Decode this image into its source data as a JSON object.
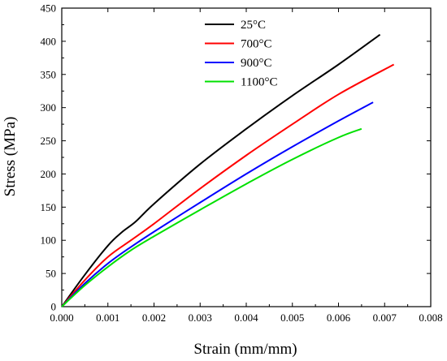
{
  "chart_data": {
    "type": "line",
    "title": "",
    "xlabel": "Strain (mm/mm)",
    "ylabel": "Stress (MPa)",
    "xlim": [
      0.0,
      0.008
    ],
    "ylim": [
      0,
      450
    ],
    "x_ticks": [
      "0.000",
      "0.001",
      "0.002",
      "0.003",
      "0.004",
      "0.005",
      "0.006",
      "0.007",
      "0.008"
    ],
    "y_ticks": [
      "0",
      "50",
      "100",
      "150",
      "200",
      "250",
      "300",
      "350",
      "400",
      "450"
    ],
    "grid": false,
    "legend_position": "top-left",
    "series": [
      {
        "name": "25°C",
        "color": "#000000",
        "points": [
          [
            0.0,
            0
          ],
          [
            0.0005,
            48
          ],
          [
            0.001,
            92
          ],
          [
            0.0013,
            112
          ],
          [
            0.0016,
            128
          ],
          [
            0.002,
            155
          ],
          [
            0.003,
            215
          ],
          [
            0.004,
            268
          ],
          [
            0.005,
            318
          ],
          [
            0.006,
            365
          ],
          [
            0.0069,
            410
          ]
        ]
      },
      {
        "name": "700°C",
        "color": "#ff0000",
        "points": [
          [
            0.0,
            0
          ],
          [
            0.0005,
            40
          ],
          [
            0.001,
            75
          ],
          [
            0.0015,
            100
          ],
          [
            0.002,
            125
          ],
          [
            0.003,
            178
          ],
          [
            0.004,
            228
          ],
          [
            0.005,
            275
          ],
          [
            0.006,
            320
          ],
          [
            0.0072,
            365
          ]
        ]
      },
      {
        "name": "900°C",
        "color": "#0000ff",
        "points": [
          [
            0.0,
            0
          ],
          [
            0.0005,
            35
          ],
          [
            0.001,
            65
          ],
          [
            0.0015,
            90
          ],
          [
            0.002,
            113
          ],
          [
            0.003,
            157
          ],
          [
            0.004,
            200
          ],
          [
            0.005,
            241
          ],
          [
            0.006,
            280
          ],
          [
            0.00675,
            308
          ]
        ]
      },
      {
        "name": "1100°C",
        "color": "#00e000",
        "points": [
          [
            0.0,
            0
          ],
          [
            0.0005,
            32
          ],
          [
            0.001,
            60
          ],
          [
            0.0015,
            85
          ],
          [
            0.002,
            106
          ],
          [
            0.003,
            146
          ],
          [
            0.004,
            185
          ],
          [
            0.005,
            222
          ],
          [
            0.006,
            255
          ],
          [
            0.0065,
            268
          ]
        ]
      }
    ]
  }
}
